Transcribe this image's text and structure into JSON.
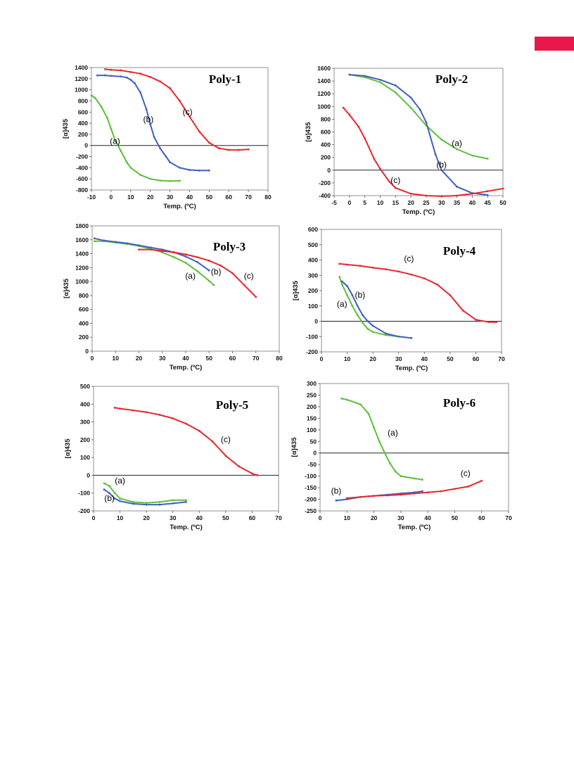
{
  "colors": {
    "a": "#5cbf3c",
    "b": "#3f5fc0",
    "c": "#e8262e",
    "accent": "#e8194a"
  },
  "chart_data": [
    {
      "type": "line",
      "title": "Poly-1",
      "xlabel": "Temp. (ºC)",
      "ylabel": "[α]435",
      "xlim": [
        -10,
        80
      ],
      "ylim": [
        -800,
        1400
      ],
      "xticks": [
        "-10",
        "0",
        "10",
        "20",
        "30",
        "40",
        "50",
        "60",
        "70",
        "80"
      ],
      "yticks": [
        "-800",
        "-600",
        "-400",
        "-200",
        "0",
        "200",
        "400",
        "600",
        "800",
        "1000",
        "1200",
        "1400"
      ],
      "series": [
        {
          "name": "(a)",
          "color": "a",
          "label_at": [
            2,
            30
          ],
          "x": [
            -10,
            -8,
            -5,
            -2,
            0,
            2,
            5,
            8,
            10,
            15,
            20,
            25,
            30,
            35
          ],
          "y": [
            900,
            850,
            700,
            500,
            300,
            100,
            -100,
            -300,
            -400,
            -530,
            -600,
            -630,
            -640,
            -635
          ]
        },
        {
          "name": "(b)",
          "color": "b",
          "label_at": [
            19,
            420
          ],
          "x": [
            -7,
            -3,
            0,
            5,
            8,
            10,
            12,
            15,
            18,
            20,
            22,
            25,
            28,
            30,
            35,
            40,
            45,
            50
          ],
          "y": [
            1260,
            1260,
            1250,
            1240,
            1220,
            1180,
            1120,
            950,
            650,
            380,
            150,
            -50,
            -200,
            -300,
            -400,
            -440,
            -450,
            -450
          ]
        },
        {
          "name": "(c)",
          "color": "c",
          "label_at": [
            39,
            550
          ],
          "x": [
            -3,
            0,
            5,
            10,
            15,
            20,
            25,
            30,
            35,
            40,
            45,
            50,
            55,
            60,
            65,
            70
          ],
          "y": [
            1370,
            1360,
            1350,
            1320,
            1290,
            1230,
            1150,
            1030,
            800,
            520,
            250,
            50,
            -50,
            -80,
            -80,
            -70
          ]
        }
      ]
    },
    {
      "type": "line",
      "title": "Poly-2",
      "xlabel": "Temp. (ºC)",
      "ylabel": "[α]435",
      "xlim": [
        -5,
        50
      ],
      "ylim": [
        -400,
        1600
      ],
      "xticks": [
        "-5",
        "0",
        "5",
        "10",
        "15",
        "20",
        "25",
        "30",
        "35",
        "40",
        "45",
        "50"
      ],
      "yticks": [
        "-400",
        "-200",
        "0",
        "200",
        "400",
        "600",
        "800",
        "1000",
        "1200",
        "1400",
        "1600"
      ],
      "series": [
        {
          "name": "(a)",
          "color": "a",
          "label_at": [
            35,
            380
          ],
          "x": [
            0,
            5,
            10,
            15,
            20,
            25,
            30,
            35,
            40,
            45
          ],
          "y": [
            1500,
            1460,
            1380,
            1220,
            980,
            700,
            480,
            330,
            230,
            180
          ]
        },
        {
          "name": "(b)",
          "color": "b",
          "label_at": [
            30,
            40
          ],
          "x": [
            0,
            5,
            10,
            15,
            20,
            23,
            25,
            28,
            30,
            35,
            40,
            45
          ],
          "y": [
            1500,
            1480,
            1420,
            1330,
            1140,
            950,
            750,
            250,
            0,
            -260,
            -360,
            -390
          ]
        },
        {
          "name": "(c)",
          "color": "c",
          "label_at": [
            15,
            -200
          ],
          "x": [
            -2,
            0,
            3,
            5,
            8,
            10,
            13,
            15,
            20,
            25,
            30,
            35,
            40,
            45,
            50
          ],
          "y": [
            980,
            870,
            680,
            500,
            180,
            20,
            -180,
            -280,
            -370,
            -400,
            -410,
            -400,
            -370,
            -330,
            -290
          ]
        }
      ]
    },
    {
      "type": "line",
      "title": "Poly-3",
      "xlabel": "Temp. (ºC)",
      "ylabel": "[α]435",
      "xlim": [
        0,
        80
      ],
      "ylim": [
        0,
        1800
      ],
      "xticks": [
        "0",
        "10",
        "20",
        "30",
        "40",
        "50",
        "60",
        "70",
        "80"
      ],
      "yticks": [
        "0",
        "200",
        "400",
        "600",
        "800",
        "1000",
        "1200",
        "1400",
        "1600",
        "1800"
      ],
      "series": [
        {
          "name": "(a)",
          "color": "a",
          "label_at": [
            42,
            1040
          ],
          "x": [
            1,
            5,
            10,
            15,
            20,
            25,
            30,
            35,
            40,
            45,
            50,
            52
          ],
          "y": [
            1580,
            1580,
            1560,
            1540,
            1510,
            1470,
            1420,
            1350,
            1270,
            1150,
            1010,
            950
          ]
        },
        {
          "name": "(b)",
          "color": "b",
          "label_at": [
            53,
            1100
          ],
          "x": [
            1,
            5,
            10,
            15,
            20,
            25,
            30,
            35,
            40,
            45,
            50
          ],
          "y": [
            1620,
            1590,
            1570,
            1550,
            1520,
            1490,
            1460,
            1420,
            1360,
            1280,
            1160
          ]
        },
        {
          "name": "(c)",
          "color": "c",
          "label_at": [
            67,
            1040
          ],
          "x": [
            20,
            25,
            30,
            35,
            40,
            45,
            50,
            55,
            60,
            65,
            70
          ],
          "y": [
            1460,
            1460,
            1440,
            1420,
            1390,
            1350,
            1300,
            1230,
            1120,
            950,
            780
          ]
        }
      ]
    },
    {
      "type": "line",
      "title": "Poly-4",
      "xlabel": "Temp. (ºC)",
      "ylabel": "[α]435",
      "xlim": [
        0,
        70
      ],
      "ylim": [
        -200,
        600
      ],
      "xticks": [
        "0",
        "10",
        "20",
        "30",
        "40",
        "50",
        "60",
        "70"
      ],
      "yticks": [
        "-200",
        "-100",
        "0",
        "100",
        "200",
        "300",
        "400",
        "500",
        "600"
      ],
      "series": [
        {
          "name": "(a)",
          "color": "a",
          "label_at": [
            8,
            95
          ],
          "x": [
            7,
            8,
            10,
            12,
            14,
            16,
            18,
            20,
            25,
            30
          ],
          "y": [
            290,
            240,
            170,
            100,
            40,
            -10,
            -50,
            -70,
            -90,
            -100
          ]
        },
        {
          "name": "(b)",
          "color": "b",
          "label_at": [
            15,
            155
          ],
          "x": [
            8,
            10,
            12,
            14,
            16,
            18,
            20,
            25,
            30,
            35
          ],
          "y": [
            260,
            230,
            170,
            100,
            40,
            0,
            -30,
            -80,
            -100,
            -110
          ]
        },
        {
          "name": "(c)",
          "color": "c",
          "label_at": [
            34,
            390
          ],
          "x": [
            7,
            10,
            15,
            20,
            25,
            30,
            35,
            40,
            45,
            50,
            55,
            60,
            65,
            68
          ],
          "y": [
            375,
            370,
            362,
            350,
            340,
            325,
            305,
            280,
            240,
            170,
            70,
            10,
            -5,
            -5
          ]
        }
      ]
    },
    {
      "type": "line",
      "title": "Poly-5",
      "xlabel": "Temp. (ºC)",
      "ylabel": "[α]435",
      "xlim": [
        0,
        70
      ],
      "ylim": [
        -200,
        500
      ],
      "xticks": [
        "0",
        "10",
        "20",
        "30",
        "40",
        "50",
        "60",
        "70"
      ],
      "yticks": [
        "-200",
        "-100",
        "0",
        "100",
        "200",
        "300",
        "400",
        "500"
      ],
      "series": [
        {
          "name": "(a)",
          "color": "a",
          "label_at": [
            10,
            -45
          ],
          "x": [
            4,
            6,
            8,
            10,
            15,
            20,
            25,
            30,
            35
          ],
          "y": [
            -45,
            -60,
            -100,
            -130,
            -150,
            -155,
            -150,
            -140,
            -140
          ]
        },
        {
          "name": "(b)",
          "color": "b",
          "label_at": [
            6,
            -145
          ],
          "x": [
            4,
            6,
            8,
            10,
            15,
            20,
            25,
            30,
            35
          ],
          "y": [
            -80,
            -100,
            -130,
            -145,
            -160,
            -165,
            -165,
            -158,
            -150
          ]
        },
        {
          "name": "(c)",
          "color": "c",
          "label_at": [
            50,
            185
          ],
          "x": [
            8,
            10,
            15,
            20,
            25,
            30,
            35,
            40,
            45,
            50,
            55,
            60,
            62
          ],
          "y": [
            380,
            375,
            365,
            355,
            340,
            320,
            290,
            250,
            190,
            110,
            50,
            10,
            0
          ]
        }
      ]
    },
    {
      "type": "line",
      "title": "Poly-6",
      "xlabel": "Temp. (ºC)",
      "ylabel": "[α]435",
      "xlim": [
        0,
        70
      ],
      "ylim": [
        -250,
        300
      ],
      "xticks": [
        "0",
        "10",
        "20",
        "30",
        "40",
        "50",
        "60",
        "70"
      ],
      "yticks": [
        "-250",
        "-200",
        "-150",
        "-100",
        "-50",
        "0",
        "50",
        "100",
        "150",
        "200",
        "250",
        "300"
      ],
      "series": [
        {
          "name": "(a)",
          "color": "a",
          "label_at": [
            27,
            75
          ],
          "x": [
            8,
            10,
            15,
            18,
            20,
            22,
            24,
            26,
            28,
            30,
            35,
            38
          ],
          "y": [
            235,
            230,
            210,
            170,
            110,
            50,
            0,
            -45,
            -80,
            -100,
            -110,
            -115
          ]
        },
        {
          "name": "(b)",
          "color": "b",
          "label_at": [
            6,
            -175
          ],
          "x": [
            6,
            10,
            15,
            20,
            25,
            30,
            35,
            38
          ],
          "y": [
            -205,
            -200,
            -190,
            -185,
            -180,
            -175,
            -170,
            -165
          ]
        },
        {
          "name": "(c)",
          "color": "c",
          "label_at": [
            54,
            -100
          ],
          "x": [
            10,
            15,
            20,
            25,
            30,
            35,
            40,
            45,
            50,
            55,
            60
          ],
          "y": [
            -195,
            -190,
            -185,
            -183,
            -180,
            -175,
            -170,
            -165,
            -155,
            -145,
            -120
          ]
        }
      ]
    }
  ]
}
